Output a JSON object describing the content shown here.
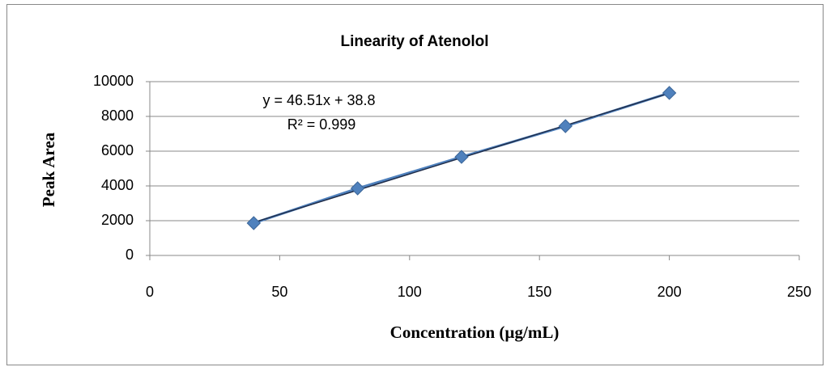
{
  "chart_data": {
    "type": "scatter",
    "title": "Linearity of Atenolol",
    "xlabel": "Concentration (µg/mL)",
    "ylabel": "Peak Area",
    "x": [
      40,
      80,
      120,
      160,
      200
    ],
    "series": [
      {
        "color": "#4f81bd",
        "values": [
          1860,
          3860,
          5670,
          7440,
          9350
        ]
      }
    ],
    "xlim": [
      0,
      250
    ],
    "xticks": [
      0,
      50,
      100,
      150,
      200,
      250
    ],
    "ylim": [
      0,
      10000
    ],
    "yticks": [
      0,
      2000,
      4000,
      6000,
      8000,
      10000
    ],
    "grid": true,
    "trendline": {
      "color": "#1f2d4a",
      "slope": 46.51,
      "intercept": 38.8,
      "equation": "y = 46.51x + 38.8",
      "r2": "R² = 0.999"
    }
  }
}
